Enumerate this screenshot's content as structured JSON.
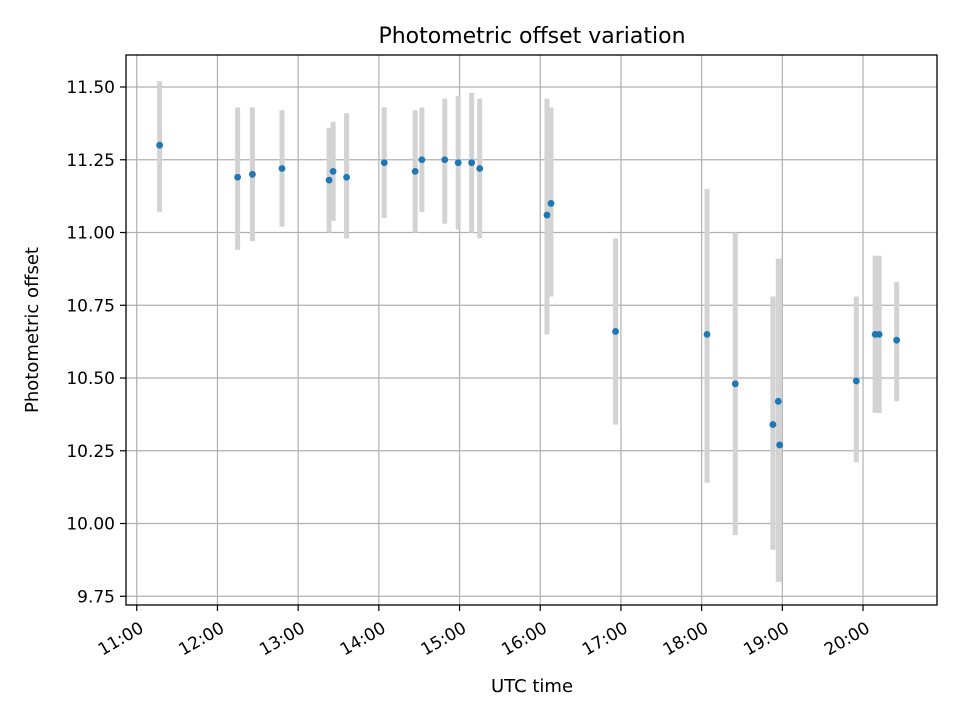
{
  "chart_data": {
    "type": "scatter",
    "title": "Photometric offset variation",
    "xlabel": "UTC time",
    "ylabel": "Photometric offset",
    "xlim": [
      "10:52",
      "20:55"
    ],
    "ylim": [
      9.72,
      11.61
    ],
    "grid": true,
    "x_ticks": [
      "11:00",
      "12:00",
      "13:00",
      "14:00",
      "15:00",
      "16:00",
      "17:00",
      "18:00",
      "19:00",
      "20:00"
    ],
    "y_ticks": [
      "9.75",
      "10.00",
      "10.25",
      "10.50",
      "10.75",
      "11.00",
      "11.25",
      "11.50"
    ],
    "point_color": "#1f77b4",
    "errorbar_color": "#d3d3d3",
    "points": [
      {
        "x": "11:17",
        "y": 11.3,
        "lo": 11.07,
        "hi": 11.52
      },
      {
        "x": "12:15",
        "y": 11.19,
        "lo": 10.94,
        "hi": 11.43
      },
      {
        "x": "12:26",
        "y": 11.2,
        "lo": 10.97,
        "hi": 11.43
      },
      {
        "x": "12:48",
        "y": 11.22,
        "lo": 11.02,
        "hi": 11.42
      },
      {
        "x": "13:23",
        "y": 11.18,
        "lo": 11.0,
        "hi": 11.36
      },
      {
        "x": "13:26",
        "y": 11.21,
        "lo": 11.04,
        "hi": 11.38
      },
      {
        "x": "13:36",
        "y": 11.19,
        "lo": 10.98,
        "hi": 11.41
      },
      {
        "x": "14:04",
        "y": 11.24,
        "lo": 11.05,
        "hi": 11.43
      },
      {
        "x": "14:27",
        "y": 11.21,
        "lo": 11.0,
        "hi": 11.42
      },
      {
        "x": "14:32",
        "y": 11.25,
        "lo": 11.07,
        "hi": 11.43
      },
      {
        "x": "14:49",
        "y": 11.25,
        "lo": 11.03,
        "hi": 11.46
      },
      {
        "x": "14:59",
        "y": 11.24,
        "lo": 11.01,
        "hi": 11.47
      },
      {
        "x": "15:09",
        "y": 11.24,
        "lo": 11.0,
        "hi": 11.48
      },
      {
        "x": "15:15",
        "y": 11.22,
        "lo": 10.98,
        "hi": 11.46
      },
      {
        "x": "16:05",
        "y": 11.06,
        "lo": 10.65,
        "hi": 11.46
      },
      {
        "x": "16:08",
        "y": 11.1,
        "lo": 10.78,
        "hi": 11.43
      },
      {
        "x": "16:56",
        "y": 10.66,
        "lo": 10.34,
        "hi": 10.98
      },
      {
        "x": "18:04",
        "y": 10.65,
        "lo": 10.14,
        "hi": 11.15
      },
      {
        "x": "18:25",
        "y": 10.48,
        "lo": 9.96,
        "hi": 11.0
      },
      {
        "x": "18:53",
        "y": 10.34,
        "lo": 9.91,
        "hi": 10.78
      },
      {
        "x": "18:57",
        "y": 10.42,
        "lo": 9.8,
        "hi": 10.91
      },
      {
        "x": "18:58",
        "y": 10.27,
        "lo": 9.8,
        "hi": 10.91
      },
      {
        "x": "19:55",
        "y": 10.49,
        "lo": 10.21,
        "hi": 10.78
      },
      {
        "x": "20:09",
        "y": 10.65,
        "lo": 10.38,
        "hi": 10.92
      },
      {
        "x": "20:12",
        "y": 10.65,
        "lo": 10.38,
        "hi": 10.92
      },
      {
        "x": "20:25",
        "y": 10.63,
        "lo": 10.42,
        "hi": 10.83
      }
    ]
  }
}
